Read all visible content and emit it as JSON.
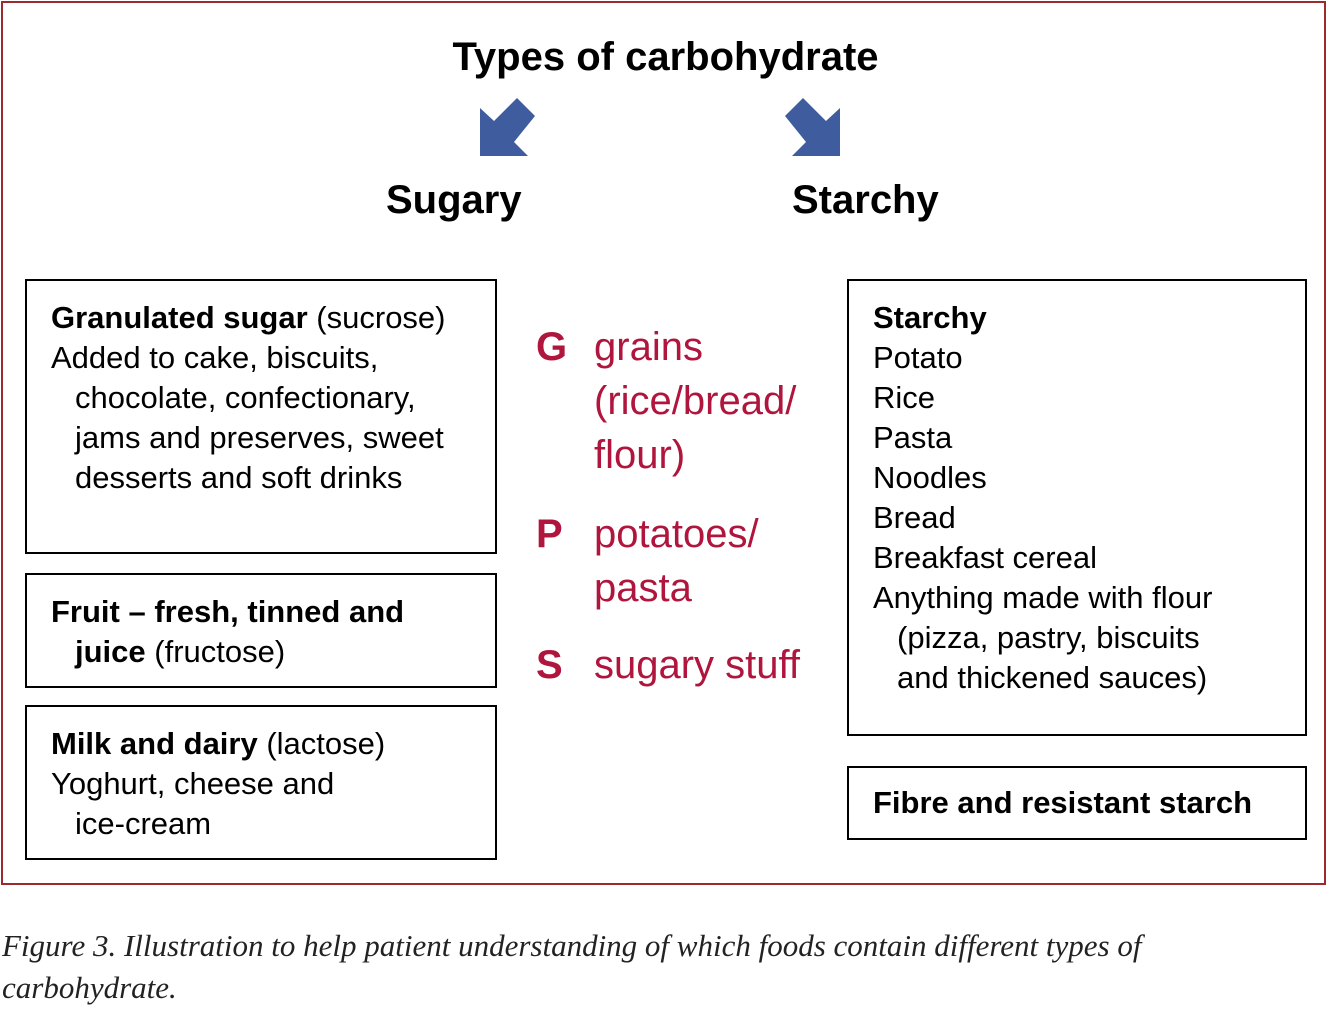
{
  "title": "Types of carbohydrate",
  "headings": {
    "left": "Sugary",
    "right": "Starchy"
  },
  "left_boxes": [
    {
      "bold": "Granulated sugar",
      "normal": " (sucrose)",
      "lines": [
        "Added to cake, biscuits,",
        "chocolate, confectionary,",
        "jams and preserves, sweet",
        "desserts and soft drinks"
      ]
    },
    {
      "bold": "Fruit – fresh, tinned and",
      "bold2": "juice",
      "normal": " (fructose)"
    },
    {
      "bold": "Milk and dairy",
      "normal": " (lactose)",
      "lines": [
        "Yoghurt, cheese and",
        "ice-cream"
      ]
    }
  ],
  "right_boxes": [
    {
      "bold": "Starchy",
      "lines": [
        "Potato",
        "Rice",
        "Pasta",
        "Noodles",
        "Bread",
        "Breakfast cereal",
        "Anything made with flour",
        "(pizza, pastry, biscuits",
        "and thickened sauces)"
      ]
    },
    {
      "bold": "Fibre and resistant starch"
    }
  ],
  "mnemonic": [
    {
      "letter": "G",
      "lines": [
        "grains",
        "(rice/bread/",
        "flour)"
      ]
    },
    {
      "letter": "P",
      "lines": [
        "potatoes/",
        "pasta"
      ]
    },
    {
      "letter": "S",
      "lines": [
        "sugary stuff"
      ]
    }
  ],
  "caption": "Figure 3. Illustration to help patient understanding of which foods contain different types of carbohydrate.",
  "colors": {
    "frame": "#9b2a2f",
    "mnemonic": "#b0163d",
    "arrow": "#3f5c9e"
  }
}
